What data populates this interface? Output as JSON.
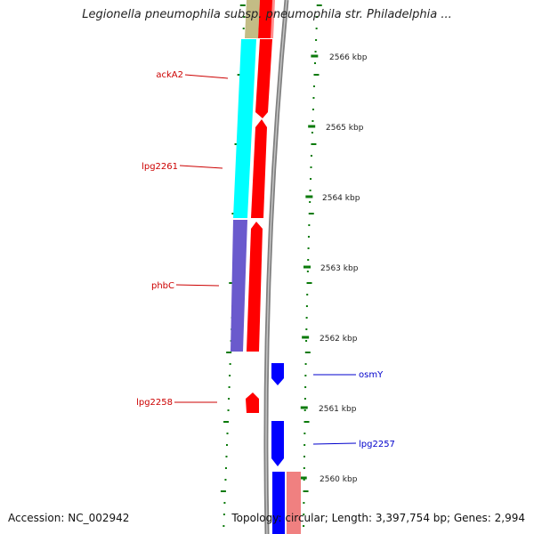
{
  "title": "Legionella pneumophila subsp. pneumophila str. Philadelphia ...",
  "accession": "Accession: NC_002942",
  "topology": "Topology: circular; Length: 3,397,754 bp; Genes: 2,994",
  "colors": {
    "tick": "#0a7a0a",
    "backbone": "#808080",
    "label_red": "#cc0000",
    "label_blue": "#0000cc",
    "gene_red": "#ff0000",
    "gene_cyan": "#00ffff",
    "gene_purple": "#6a5acd",
    "gene_blue": "#0000ff",
    "gene_pink": "#f08080",
    "gene_olive": "#b8b070"
  },
  "scale_labels": [
    "2566 kbp",
    "2565 kbp",
    "2564 kbp",
    "2563 kbp",
    "2562 kbp",
    "2561 kbp",
    "2560 kbp"
  ],
  "gene_labels": [
    {
      "text": "ackA2",
      "strand": "minus"
    },
    {
      "text": "lpg2261",
      "strand": "minus"
    },
    {
      "text": "phbC",
      "strand": "minus"
    },
    {
      "text": "lpg2258",
      "strand": "minus"
    },
    {
      "text": "osmY",
      "strand": "plus"
    },
    {
      "text": "lpg2257",
      "strand": "plus"
    }
  ]
}
